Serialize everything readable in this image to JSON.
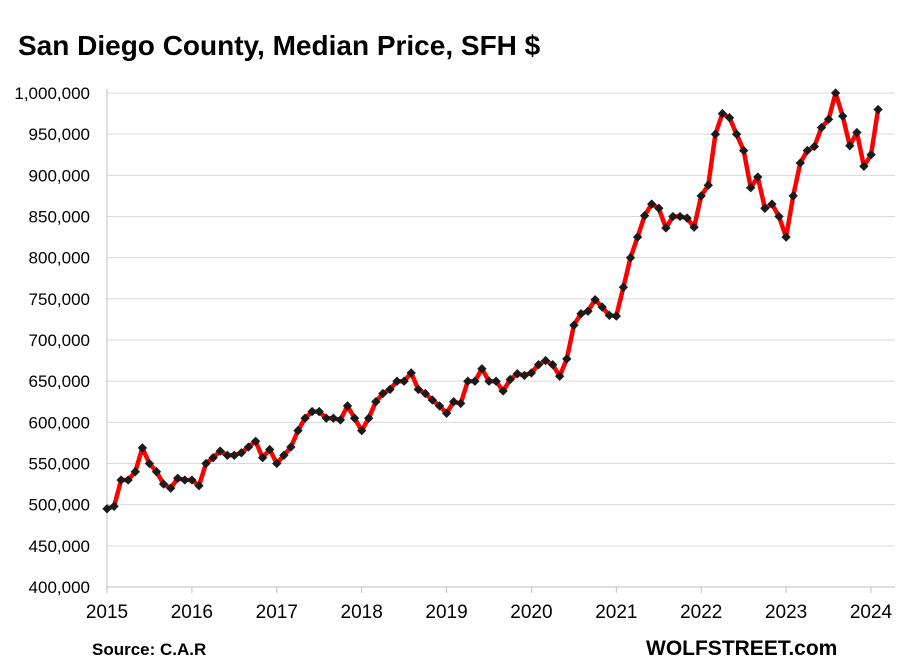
{
  "chart_data": {
    "type": "line",
    "title": "San Diego County, Median Price, SFH $",
    "source_note": "Source:  C.A.R",
    "watermark": "WOLFSTREET.com",
    "xlabel": "",
    "ylabel": "",
    "ylim": [
      400000,
      1000000
    ],
    "y_ticks": [
      400000,
      450000,
      500000,
      550000,
      600000,
      650000,
      700000,
      750000,
      800000,
      850000,
      900000,
      950000,
      1000000
    ],
    "y_tick_labels": [
      "400,000",
      "450,000",
      "500,000",
      "550,000",
      "600,000",
      "650,000",
      "700,000",
      "750,000",
      "800,000",
      "850,000",
      "900,000",
      "950,000",
      "1,000,000"
    ],
    "x_tick_labels": [
      "2015",
      "2016",
      "2017",
      "2018",
      "2019",
      "2020",
      "2021",
      "2022",
      "2023",
      "2024"
    ],
    "grid": true,
    "line_color": "#ff0000",
    "marker_color": "#1a1a1a",
    "series": [
      {
        "x": [
          "2015-01",
          "2015-02",
          "2015-03",
          "2015-04",
          "2015-05",
          "2015-06",
          "2015-07",
          "2015-08",
          "2015-09",
          "2015-10",
          "2015-11",
          "2015-12",
          "2016-01",
          "2016-02",
          "2016-03",
          "2016-04",
          "2016-05",
          "2016-06",
          "2016-07",
          "2016-08",
          "2016-09",
          "2016-10",
          "2016-11",
          "2016-12",
          "2017-01",
          "2017-02",
          "2017-03",
          "2017-04",
          "2017-05",
          "2017-06",
          "2017-07",
          "2017-08",
          "2017-09",
          "2017-10",
          "2017-11",
          "2017-12",
          "2018-01",
          "2018-02",
          "2018-03",
          "2018-04",
          "2018-05",
          "2018-06",
          "2018-07",
          "2018-08",
          "2018-09",
          "2018-10",
          "2018-11",
          "2018-12",
          "2019-01",
          "2019-02",
          "2019-03",
          "2019-04",
          "2019-05",
          "2019-06",
          "2019-07",
          "2019-08",
          "2019-09",
          "2019-10",
          "2019-11",
          "2019-12",
          "2020-01",
          "2020-02",
          "2020-03",
          "2020-04",
          "2020-05",
          "2020-06",
          "2020-07",
          "2020-08",
          "2020-09",
          "2020-10",
          "2020-11",
          "2020-12",
          "2021-01",
          "2021-02",
          "2021-03",
          "2021-04",
          "2021-05",
          "2021-06",
          "2021-07",
          "2021-08",
          "2021-09",
          "2021-10",
          "2021-11",
          "2021-12",
          "2022-01",
          "2022-02",
          "2022-03",
          "2022-04",
          "2022-05",
          "2022-06",
          "2022-07",
          "2022-08",
          "2022-09",
          "2022-10",
          "2022-11",
          "2022-12",
          "2023-01",
          "2023-02",
          "2023-03",
          "2023-04",
          "2023-05",
          "2023-06",
          "2023-07",
          "2023-08",
          "2023-09",
          "2023-10",
          "2023-11",
          "2023-12",
          "2024-01",
          "2024-02"
        ],
        "values": [
          495000,
          498000,
          530000,
          530000,
          540000,
          569000,
          550000,
          540000,
          525000,
          520000,
          532000,
          530000,
          530000,
          523000,
          550000,
          557000,
          565000,
          560000,
          560000,
          563000,
          570000,
          577000,
          557000,
          567000,
          550000,
          560000,
          570000,
          590000,
          605000,
          613000,
          613000,
          605000,
          605000,
          603000,
          620000,
          605000,
          590000,
          605000,
          625000,
          635000,
          640000,
          650000,
          650000,
          660000,
          640000,
          635000,
          627000,
          620000,
          611000,
          625000,
          623000,
          650000,
          650000,
          665000,
          650000,
          650000,
          638000,
          652000,
          659000,
          657000,
          660000,
          670000,
          675000,
          670000,
          656000,
          677000,
          718000,
          732000,
          735000,
          749000,
          740000,
          730000,
          729000,
          764000,
          800000,
          825000,
          851000,
          865000,
          860000,
          836000,
          850000,
          850000,
          848000,
          837000,
          875000,
          888000,
          950000,
          975000,
          970000,
          950000,
          930000,
          885000,
          898000,
          860000,
          865000,
          850000,
          825000,
          875000,
          915000,
          930000,
          935000,
          958000,
          968000,
          1000000,
          972000,
          936000,
          952000,
          911000,
          925000,
          980000
        ]
      }
    ]
  }
}
